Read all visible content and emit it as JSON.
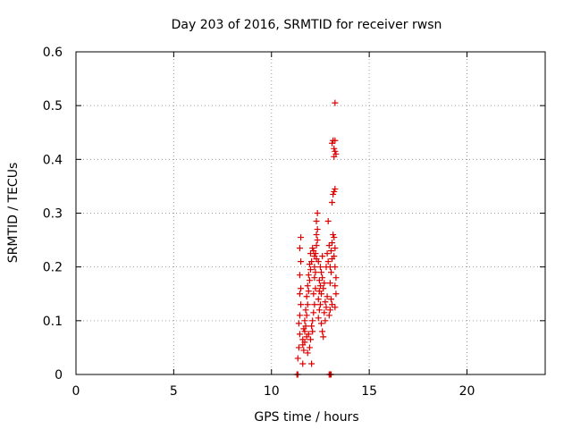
{
  "chart_data": {
    "type": "scatter",
    "title": "Day 203 of 2016, SRMTID for receiver rwsn",
    "xlabel": "GPS time / hours",
    "ylabel": "SRMTID / TECUs",
    "xlim": [
      0,
      24
    ],
    "ylim": [
      0,
      0.6
    ],
    "xticks": [
      "0",
      "5",
      "10",
      "15",
      "20"
    ],
    "yticks": [
      "0",
      "0.1",
      "0.2",
      "0.3",
      "0.4",
      "0.5",
      "0.6"
    ],
    "grid": true,
    "marker": "plus",
    "color": "#dd0000",
    "series": [
      {
        "name": "SRMTID",
        "points": [
          [
            11.3,
            0.0
          ],
          [
            11.35,
            0.0
          ],
          [
            12.95,
            0.0
          ],
          [
            13.0,
            0.0
          ],
          [
            13.05,
            0.0
          ],
          [
            11.35,
            0.03
          ],
          [
            11.4,
            0.05
          ],
          [
            11.45,
            0.075
          ],
          [
            11.4,
            0.095
          ],
          [
            11.45,
            0.11
          ],
          [
            11.5,
            0.13
          ],
          [
            11.45,
            0.15
          ],
          [
            11.5,
            0.16
          ],
          [
            11.45,
            0.185
          ],
          [
            11.5,
            0.21
          ],
          [
            11.45,
            0.235
          ],
          [
            11.5,
            0.255
          ],
          [
            11.6,
            0.02
          ],
          [
            11.65,
            0.045
          ],
          [
            11.6,
            0.065
          ],
          [
            11.7,
            0.08
          ],
          [
            11.65,
            0.085
          ],
          [
            11.75,
            0.09
          ],
          [
            11.7,
            0.1
          ],
          [
            11.8,
            0.11
          ],
          [
            11.75,
            0.12
          ],
          [
            11.85,
            0.13
          ],
          [
            11.8,
            0.145
          ],
          [
            11.9,
            0.155
          ],
          [
            11.85,
            0.165
          ],
          [
            11.95,
            0.175
          ],
          [
            11.9,
            0.185
          ],
          [
            12.0,
            0.195
          ],
          [
            11.95,
            0.205
          ],
          [
            12.05,
            0.21
          ],
          [
            12.0,
            0.225
          ],
          [
            11.6,
            0.055
          ],
          [
            11.7,
            0.06
          ],
          [
            11.8,
            0.07
          ],
          [
            11.9,
            0.075
          ],
          [
            12.0,
            0.065
          ],
          [
            12.05,
            0.02
          ],
          [
            11.85,
            0.04
          ],
          [
            11.95,
            0.05
          ],
          [
            12.1,
            0.08
          ],
          [
            12.05,
            0.09
          ],
          [
            12.1,
            0.1
          ],
          [
            12.15,
            0.115
          ],
          [
            12.2,
            0.13
          ],
          [
            12.15,
            0.15
          ],
          [
            12.25,
            0.16
          ],
          [
            12.2,
            0.18
          ],
          [
            12.25,
            0.19
          ],
          [
            12.2,
            0.2
          ],
          [
            12.3,
            0.215
          ],
          [
            12.25,
            0.225
          ],
          [
            12.3,
            0.24
          ],
          [
            12.35,
            0.25
          ],
          [
            12.3,
            0.26
          ],
          [
            12.35,
            0.27
          ],
          [
            12.3,
            0.285
          ],
          [
            12.35,
            0.3
          ],
          [
            12.1,
            0.235
          ],
          [
            12.15,
            0.23
          ],
          [
            12.2,
            0.22
          ],
          [
            12.4,
            0.105
          ],
          [
            12.45,
            0.12
          ],
          [
            12.5,
            0.13
          ],
          [
            12.4,
            0.14
          ],
          [
            12.55,
            0.15
          ],
          [
            12.5,
            0.165
          ],
          [
            12.45,
            0.175
          ],
          [
            12.6,
            0.18
          ],
          [
            12.55,
            0.19
          ],
          [
            12.5,
            0.2
          ],
          [
            12.4,
            0.21
          ],
          [
            12.6,
            0.22
          ],
          [
            12.45,
            0.155
          ],
          [
            12.65,
            0.16
          ],
          [
            12.7,
            0.17
          ],
          [
            12.6,
            0.08
          ],
          [
            12.65,
            0.07
          ],
          [
            12.55,
            0.095
          ],
          [
            12.75,
            0.1
          ],
          [
            12.7,
            0.115
          ],
          [
            12.8,
            0.125
          ],
          [
            12.75,
            0.135
          ],
          [
            12.85,
            0.145
          ],
          [
            12.8,
            0.2
          ],
          [
            12.9,
            0.21
          ],
          [
            12.85,
            0.225
          ],
          [
            12.95,
            0.24
          ],
          [
            12.9,
            0.285
          ],
          [
            13.0,
            0.17
          ],
          [
            13.05,
            0.19
          ],
          [
            13.0,
            0.2
          ],
          [
            13.1,
            0.215
          ],
          [
            13.05,
            0.23
          ],
          [
            13.1,
            0.245
          ],
          [
            13.15,
            0.26
          ],
          [
            13.2,
            0.255
          ],
          [
            13.25,
            0.235
          ],
          [
            13.2,
            0.22
          ],
          [
            13.25,
            0.2
          ],
          [
            13.3,
            0.18
          ],
          [
            13.25,
            0.165
          ],
          [
            13.3,
            0.15
          ],
          [
            13.25,
            0.125
          ],
          [
            13.05,
            0.14
          ],
          [
            13.0,
            0.12
          ],
          [
            12.95,
            0.11
          ],
          [
            13.1,
            0.13
          ],
          [
            13.1,
            0.32
          ],
          [
            13.15,
            0.335
          ],
          [
            13.2,
            0.34
          ],
          [
            13.25,
            0.345
          ],
          [
            13.2,
            0.405
          ],
          [
            13.25,
            0.415
          ],
          [
            13.2,
            0.42
          ],
          [
            13.1,
            0.43
          ],
          [
            13.15,
            0.435
          ],
          [
            13.25,
            0.435
          ],
          [
            13.3,
            0.41
          ],
          [
            13.25,
            0.505
          ]
        ]
      }
    ]
  }
}
